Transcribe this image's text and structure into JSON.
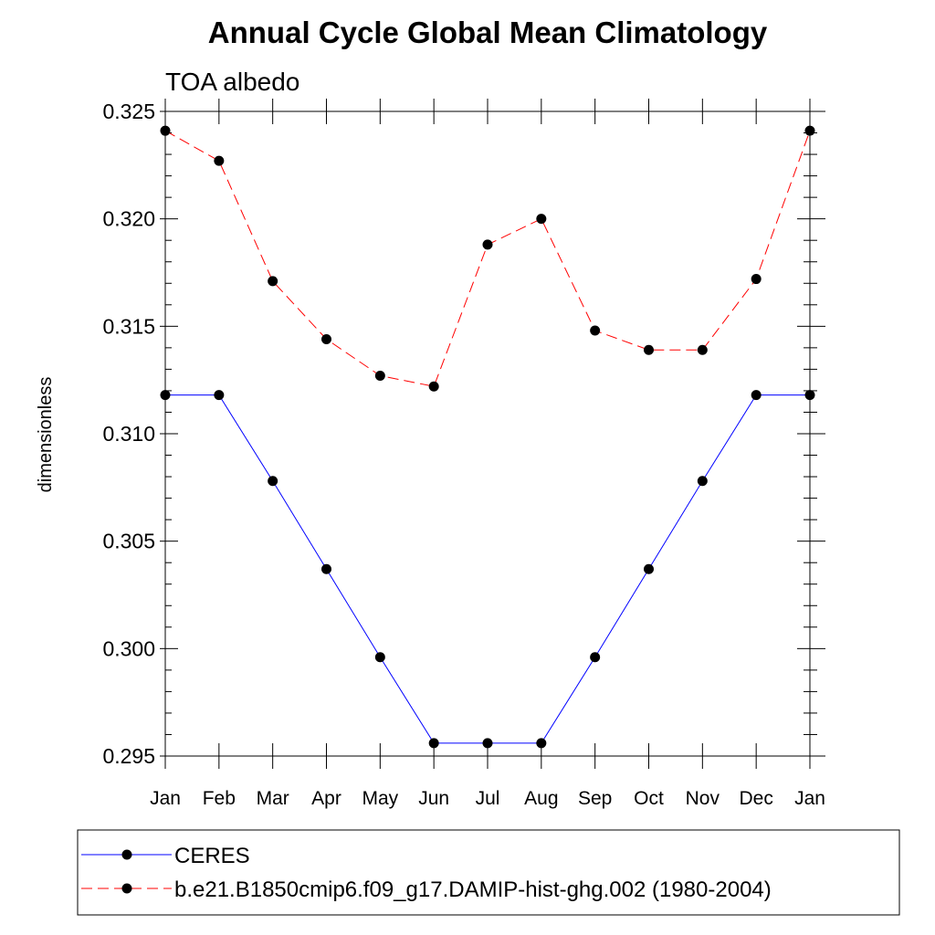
{
  "chart_data": {
    "type": "line",
    "title": "Annual Cycle Global Mean Climatology",
    "subtitle": "TOA albedo",
    "xlabel": "",
    "ylabel": "dimensionless",
    "categories": [
      "Jan",
      "Feb",
      "Mar",
      "Apr",
      "May",
      "Jun",
      "Jul",
      "Aug",
      "Sep",
      "Oct",
      "Nov",
      "Dec",
      "Jan"
    ],
    "ylim": [
      0.295,
      0.325
    ],
    "yticks": [
      "0.295",
      "0.300",
      "0.305",
      "0.310",
      "0.315",
      "0.320",
      "0.325"
    ],
    "ytick_values": [
      0.295,
      0.3,
      0.305,
      0.31,
      0.315,
      0.32,
      0.325
    ],
    "legend_position": "bottom",
    "series": [
      {
        "name": "CERES",
        "color": "#0000ff",
        "style": "solid",
        "values": [
          0.3118,
          0.3118,
          0.3078,
          0.3037,
          0.2996,
          0.2956,
          0.2956,
          0.2956,
          0.2996,
          0.3037,
          0.3078,
          0.3118,
          0.3118
        ]
      },
      {
        "name": "b.e21.B1850cmip6.f09_g17.DAMIP-hist-ghg.002 (1980-2004)",
        "color": "#ff0000",
        "style": "dashed",
        "values": [
          0.3241,
          0.3227,
          0.3171,
          0.3144,
          0.3127,
          0.3122,
          0.3188,
          0.32,
          0.3148,
          0.3139,
          0.3139,
          0.3172,
          0.3241
        ]
      }
    ]
  }
}
